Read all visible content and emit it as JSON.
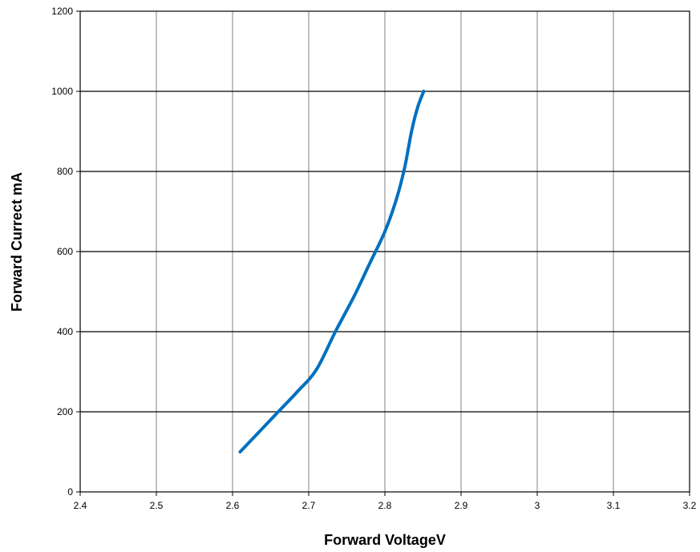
{
  "chart_data": {
    "type": "line",
    "title": "",
    "xlabel": "Forward VoltageV",
    "ylabel": "Forward Currect mA",
    "xlim": [
      2.4,
      3.2
    ],
    "ylim": [
      0,
      1200
    ],
    "x_ticks": [
      "2.4",
      "2.5",
      "2.6",
      "2.7",
      "2.8",
      "2.9",
      "3",
      "3.1",
      "3.2"
    ],
    "y_ticks": [
      "0",
      "200",
      "400",
      "600",
      "800",
      "1000",
      "1200"
    ],
    "grid": true,
    "legend": "none",
    "series": [
      {
        "color": "#0070C0",
        "x": [
          2.61,
          2.635,
          2.66,
          2.685,
          2.71,
          2.735,
          2.76,
          2.78,
          2.8,
          2.815,
          2.826,
          2.835,
          2.843,
          2.851
        ],
        "y": [
          100,
          150,
          200,
          250,
          305,
          400,
          490,
          570,
          650,
          730,
          810,
          900,
          960,
          1000
        ]
      }
    ]
  }
}
